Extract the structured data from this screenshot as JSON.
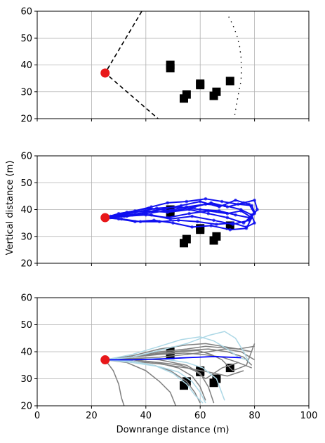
{
  "chart_data": [
    {
      "type": "line",
      "title": "",
      "xlabel": "",
      "ylabel": "",
      "xlim": [
        0,
        100
      ],
      "ylim": [
        20,
        60
      ],
      "xticks": [
        0,
        20,
        40,
        60,
        80,
        100
      ],
      "yticks": [
        20,
        30,
        40,
        50,
        60
      ],
      "show_xtick_labels": false,
      "grid": true,
      "start_point": {
        "x": 25,
        "y": 37,
        "color": "#e8181a"
      },
      "obstacles": [
        {
          "x": 49,
          "y": 40
        },
        {
          "x": 49,
          "y": 38.8
        },
        {
          "x": 60,
          "y": 33
        },
        {
          "x": 60,
          "y": 32.5
        },
        {
          "x": 66,
          "y": 30
        },
        {
          "x": 65,
          "y": 28.5
        },
        {
          "x": 55,
          "y": 29
        },
        {
          "x": 54,
          "y": 27.5
        },
        {
          "x": 71,
          "y": 34
        }
      ],
      "series": [
        {
          "style": "dashed",
          "color": "#000000",
          "x": [
            38.5,
            25,
            44.5
          ],
          "y": [
            60,
            37,
            20
          ]
        },
        {
          "style": "dotted",
          "color": "#000000",
          "x": [
            70.5,
            72,
            73.5,
            74.5,
            75,
            75.2,
            75,
            74.2,
            73,
            72.5
          ],
          "y": [
            58,
            55,
            51,
            47,
            43,
            38,
            34,
            30,
            23,
            20
          ]
        }
      ]
    },
    {
      "type": "line",
      "title": "",
      "xlabel": "",
      "ylabel": "Vertical distance (m)",
      "xlim": [
        0,
        100
      ],
      "ylim": [
        20,
        60
      ],
      "xticks": [
        0,
        20,
        40,
        60,
        80,
        100
      ],
      "yticks": [
        20,
        30,
        40,
        50,
        60
      ],
      "show_xtick_labels": false,
      "grid": true,
      "start_point": {
        "x": 25,
        "y": 37,
        "color": "#e8181a"
      },
      "obstacles": [
        {
          "x": 49,
          "y": 40
        },
        {
          "x": 49,
          "y": 38.8
        },
        {
          "x": 60,
          "y": 33
        },
        {
          "x": 60,
          "y": 32.5
        },
        {
          "x": 66,
          "y": 30
        },
        {
          "x": 65,
          "y": 28.5
        },
        {
          "x": 55,
          "y": 29
        },
        {
          "x": 54,
          "y": 27.5
        },
        {
          "x": 71,
          "y": 34
        }
      ],
      "series": [
        {
          "color": "#1010f0",
          "x": [
            25,
            30,
            36,
            42,
            48,
            55,
            62,
            68,
            74,
            79,
            80,
            78,
            73,
            67,
            60,
            52,
            44,
            36,
            29,
            25
          ],
          "y": [
            37,
            38.5,
            39.5,
            41,
            42.5,
            43,
            44,
            43,
            42,
            41.5,
            39,
            37,
            38,
            39.5,
            40,
            41,
            40.5,
            39,
            37.5,
            37
          ]
        },
        {
          "color": "#1010f0",
          "x": [
            25,
            31,
            38,
            45,
            52,
            59,
            66,
            72,
            77,
            80,
            79,
            75,
            69,
            62,
            55,
            47,
            40,
            33,
            27,
            25
          ],
          "y": [
            37,
            36.5,
            35.5,
            35.5,
            36,
            35.5,
            34.5,
            35,
            33.5,
            35,
            38,
            40,
            41.5,
            42,
            41,
            39.5,
            38.5,
            37.5,
            37,
            37
          ]
        },
        {
          "color": "#1010f0",
          "x": [
            25,
            33,
            41,
            50,
            58,
            64,
            70,
            76,
            80,
            81,
            78,
            72,
            65,
            57,
            49,
            42,
            35,
            28,
            25
          ],
          "y": [
            37,
            39,
            40.5,
            39.5,
            41,
            42.5,
            41,
            42.5,
            43.5,
            40,
            36,
            34.5,
            36,
            37.5,
            36.5,
            38,
            38,
            37.5,
            37
          ]
        },
        {
          "color": "#1010f0",
          "x": [
            25,
            32,
            40,
            48,
            56,
            63,
            70,
            75,
            79,
            77,
            71,
            64,
            57,
            50,
            43,
            36,
            30,
            25
          ],
          "y": [
            37,
            37.5,
            38,
            37,
            38.5,
            39.5,
            38.5,
            39.5,
            37,
            33,
            32.5,
            34,
            33.5,
            35,
            36,
            35.5,
            36.5,
            37
          ]
        },
        {
          "color": "#1010f0",
          "x": [
            25,
            34,
            43,
            53,
            60,
            67,
            73,
            78,
            80,
            76,
            70,
            63,
            56,
            48,
            40,
            32,
            27,
            25
          ],
          "y": [
            37,
            38,
            39.5,
            41.5,
            43,
            41,
            43.5,
            42,
            38.5,
            35,
            37,
            38.5,
            40,
            39,
            39.5,
            38.5,
            37.5,
            37
          ]
        }
      ]
    },
    {
      "type": "line",
      "title": "",
      "xlabel": "Downrange distance (m)",
      "ylabel": "",
      "xlim": [
        0,
        100
      ],
      "ylim": [
        20,
        60
      ],
      "xticks": [
        0,
        20,
        40,
        60,
        80,
        100
      ],
      "yticks": [
        20,
        30,
        40,
        50,
        60
      ],
      "show_xtick_labels": true,
      "grid": true,
      "start_point": {
        "x": 25,
        "y": 37,
        "color": "#e8181a"
      },
      "obstacles": [
        {
          "x": 49,
          "y": 40
        },
        {
          "x": 49,
          "y": 38.8
        },
        {
          "x": 60,
          "y": 33
        },
        {
          "x": 60,
          "y": 32.5
        },
        {
          "x": 66,
          "y": 30
        },
        {
          "x": 65,
          "y": 28.5
        },
        {
          "x": 55,
          "y": 29
        },
        {
          "x": 54,
          "y": 27.5
        },
        {
          "x": 71,
          "y": 34
        }
      ],
      "series": [
        {
          "color": "#808080",
          "x": [
            25,
            35,
            45,
            55,
            62,
            68,
            74,
            79
          ],
          "y": [
            37,
            38,
            40,
            41,
            42,
            41.5,
            41,
            40
          ]
        },
        {
          "color": "#808080",
          "x": [
            25,
            35,
            45,
            55,
            62,
            68,
            74,
            80
          ],
          "y": [
            37,
            38.5,
            41,
            42.5,
            43,
            42,
            41,
            42
          ]
        },
        {
          "color": "#808080",
          "x": [
            25,
            35,
            45,
            55,
            63,
            69,
            75,
            80
          ],
          "y": [
            37,
            37.5,
            38,
            39,
            40,
            41,
            40,
            37
          ]
        },
        {
          "color": "#808080",
          "x": [
            25,
            35,
            45,
            53,
            58,
            62,
            68,
            74
          ],
          "y": [
            37,
            37,
            36,
            35,
            33,
            30,
            34,
            36
          ]
        },
        {
          "color": "#808080",
          "x": [
            25,
            35,
            43,
            49,
            55,
            58,
            60
          ],
          "y": [
            37,
            36.5,
            35,
            33,
            29,
            25,
            21
          ]
        },
        {
          "color": "#808080",
          "x": [
            25,
            33,
            40,
            45,
            49,
            51
          ],
          "y": [
            37,
            36,
            33,
            29,
            25,
            20
          ]
        },
        {
          "color": "#808080",
          "x": [
            25,
            35,
            45,
            55,
            60,
            63,
            65
          ],
          "y": [
            37,
            37.5,
            37,
            35,
            32,
            27,
            21
          ]
        },
        {
          "color": "#808080",
          "x": [
            25,
            35,
            45,
            55,
            63,
            70,
            76
          ],
          "y": [
            37,
            36.5,
            35.5,
            34,
            32.5,
            31,
            33
          ]
        },
        {
          "color": "#808080",
          "x": [
            25,
            28,
            30,
            31,
            32
          ],
          "y": [
            37,
            33,
            28,
            23,
            20
          ]
        },
        {
          "color": "#808080",
          "x": [
            25,
            35,
            45,
            54,
            61,
            68,
            74,
            79
          ],
          "y": [
            37,
            38,
            39,
            39.5,
            39,
            38,
            36,
            34
          ]
        },
        {
          "color": "#808080",
          "x": [
            25,
            35,
            45,
            55,
            63,
            70,
            76,
            79
          ],
          "y": [
            37,
            38,
            39.5,
            40.5,
            41,
            40,
            38,
            35
          ]
        },
        {
          "color": "#808080",
          "x": [
            25,
            35,
            44,
            52,
            57,
            60,
            62
          ],
          "y": [
            37,
            37,
            36,
            34,
            31,
            27,
            22
          ]
        },
        {
          "color": "#808080",
          "x": [
            25,
            34,
            43,
            52,
            59,
            64,
            68,
            72,
            77,
            80
          ],
          "y": [
            37,
            38,
            39,
            40,
            40.5,
            39,
            37,
            33,
            35,
            43
          ]
        },
        {
          "color": "#add8e6",
          "x": [
            25,
            35,
            45,
            53,
            60,
            65,
            70,
            74,
            77
          ],
          "y": [
            37,
            39,
            42,
            44.5,
            45.5,
            44,
            41,
            38,
            37
          ]
        },
        {
          "color": "#add8e6",
          "x": [
            25,
            35,
            45,
            55,
            63,
            69,
            73,
            76,
            78
          ],
          "y": [
            37,
            38,
            40.5,
            43,
            46,
            47.5,
            45,
            40,
            36
          ]
        },
        {
          "color": "#add8e6",
          "x": [
            25,
            35,
            43,
            50,
            55,
            58,
            61
          ],
          "y": [
            37,
            36.5,
            35,
            32,
            28,
            24,
            21
          ]
        },
        {
          "color": "#add8e6",
          "x": [
            25,
            35,
            45,
            52,
            57,
            60,
            62
          ],
          "y": [
            37,
            36,
            34.5,
            32.5,
            29,
            25,
            21
          ]
        },
        {
          "color": "#add8e6",
          "x": [
            25,
            35,
            45,
            55,
            61,
            66,
            69
          ],
          "y": [
            37,
            37,
            37.5,
            36,
            34,
            30,
            22
          ]
        },
        {
          "color": "#0000ff",
          "x": [
            25,
            35,
            45,
            55,
            65,
            75
          ],
          "y": [
            37,
            37,
            37.3,
            37.8,
            38.2,
            37.8
          ]
        }
      ]
    }
  ]
}
